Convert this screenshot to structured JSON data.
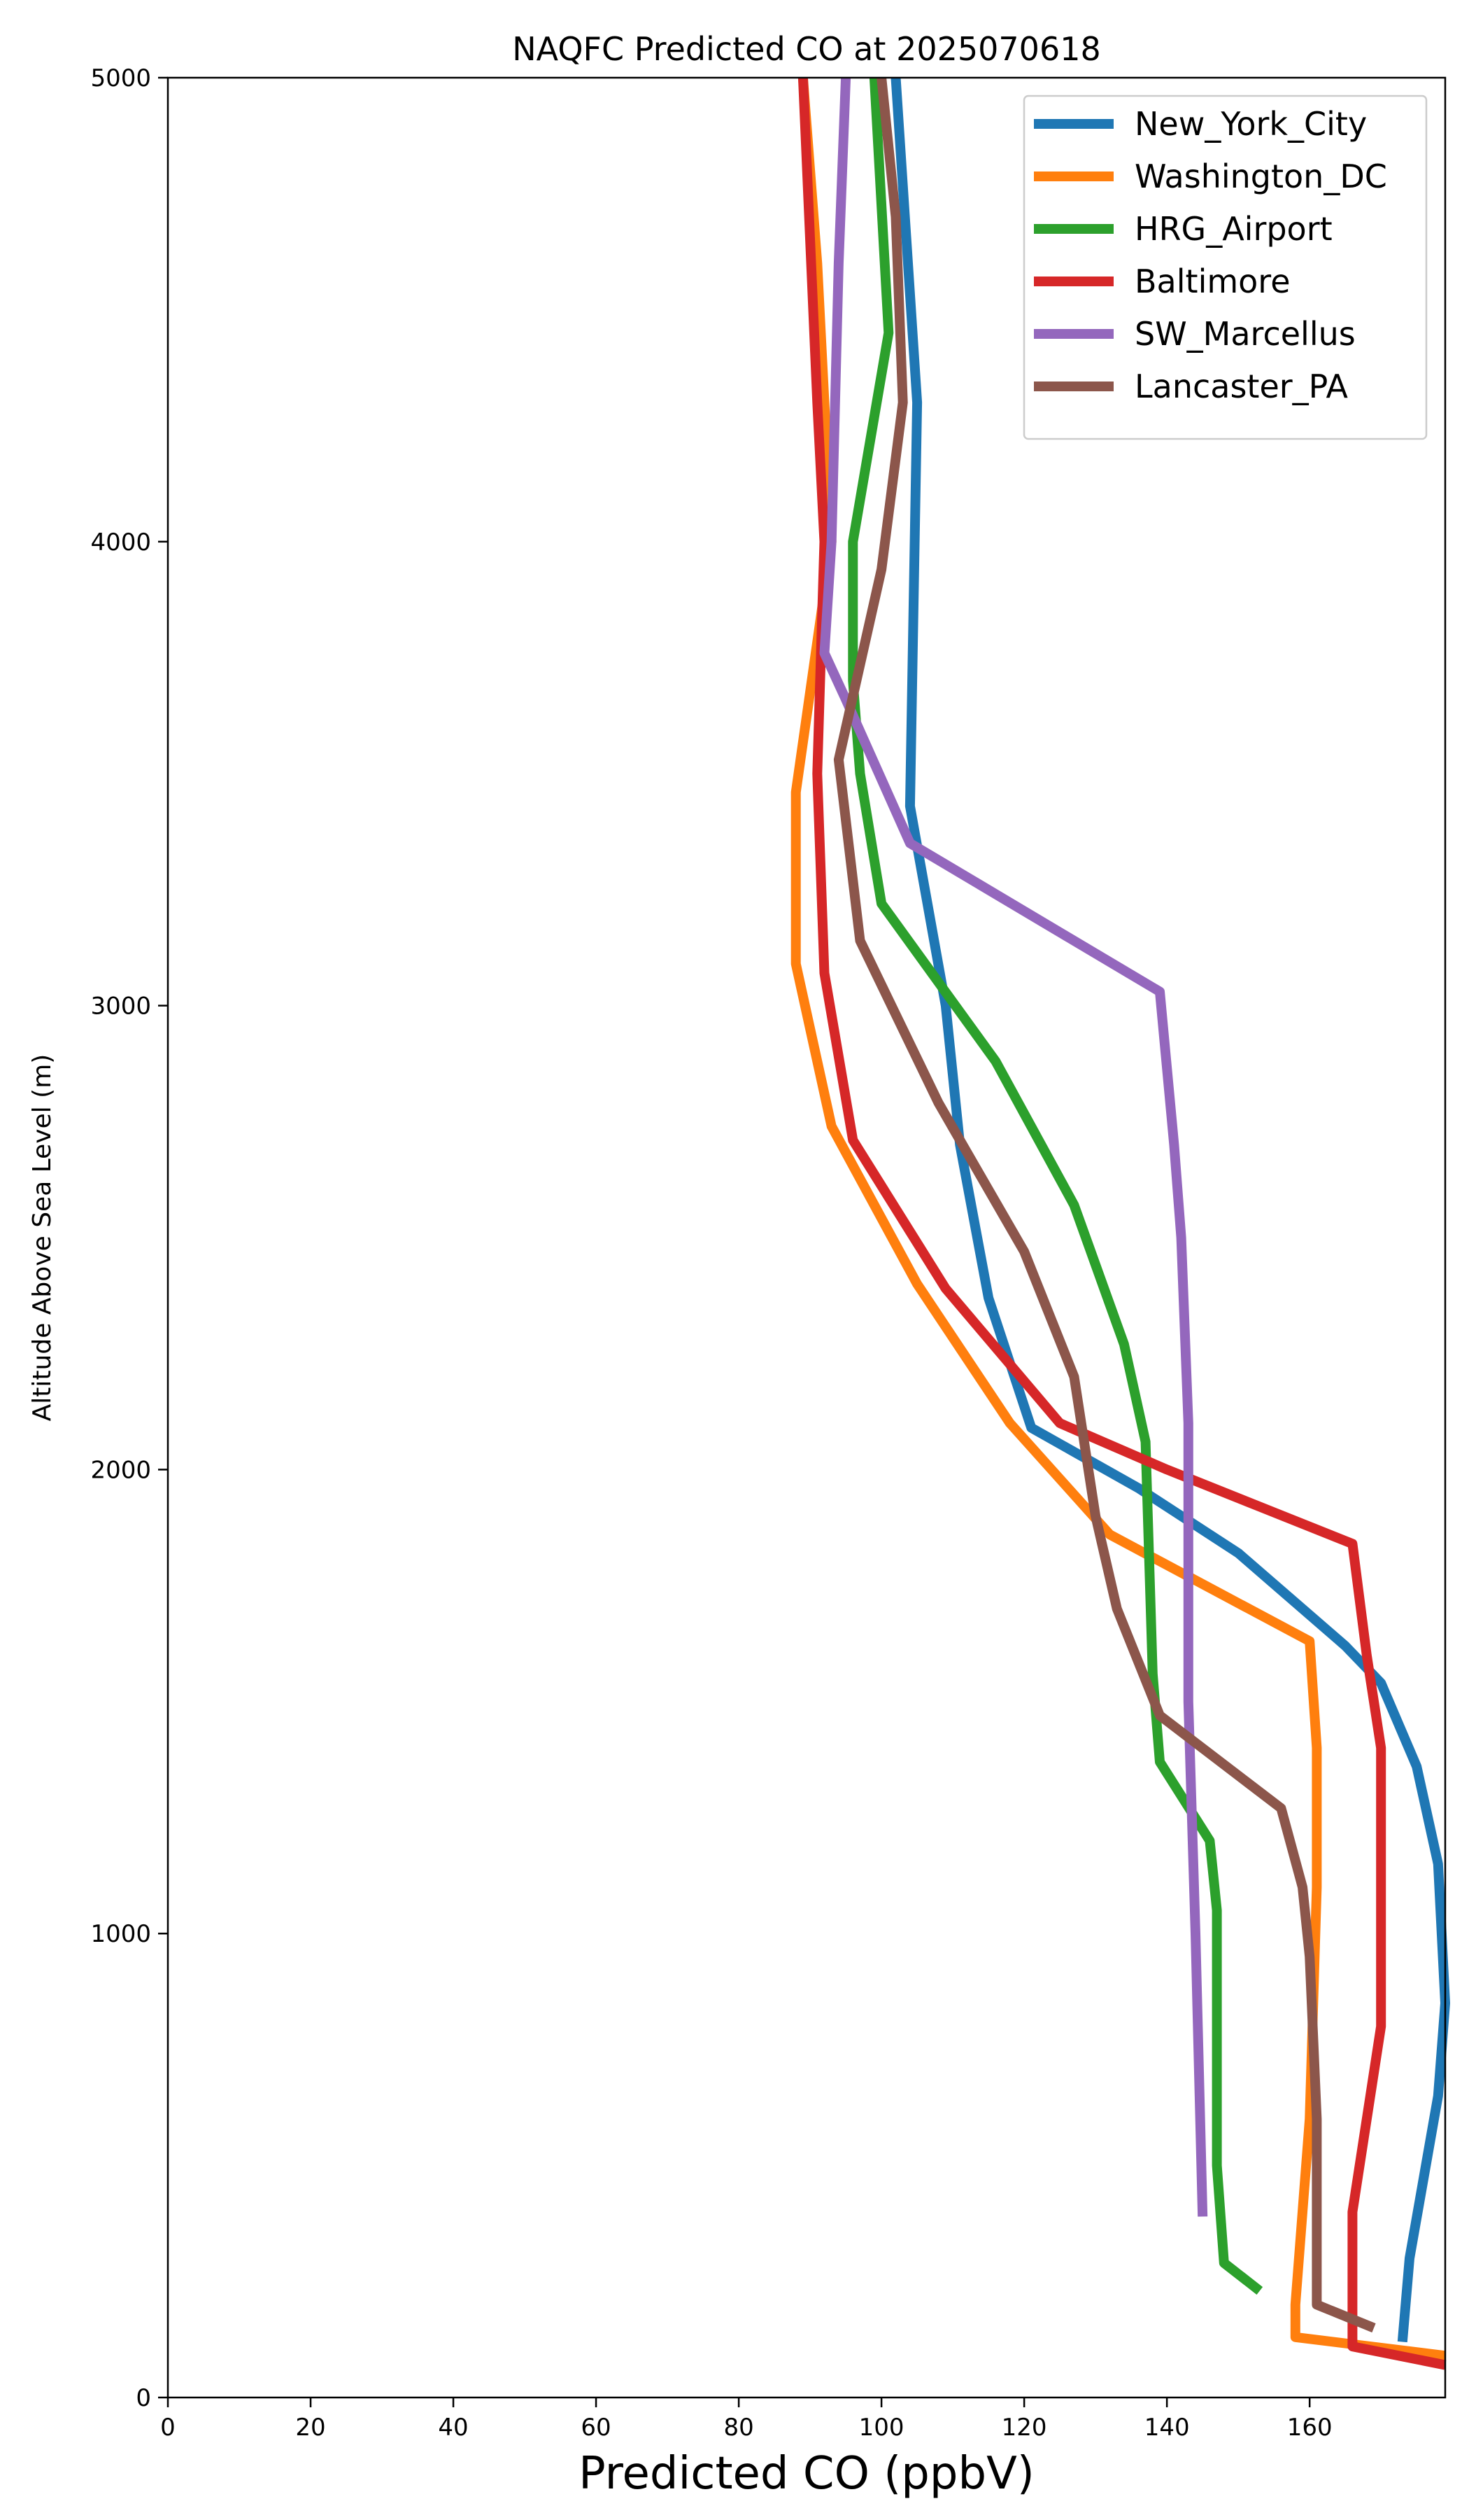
{
  "chart_data": {
    "type": "line",
    "title": "NAQFC Predicted CO at 2025070618",
    "xlabel": "Predicted CO (ppbV)",
    "ylabel": "Altitude Above Sea Level (m)",
    "xlim": [
      0,
      179
    ],
    "ylim": [
      0,
      5000
    ],
    "xticks": [
      0,
      20,
      40,
      60,
      80,
      100,
      120,
      140,
      160
    ],
    "yticks": [
      0,
      1000,
      2000,
      3000,
      4000,
      5000
    ],
    "grid": false,
    "legend": "top-right",
    "series": [
      {
        "name": "New_York_City",
        "color": "#1f77b4",
        "points": [
          [
            173,
            120
          ],
          [
            174,
            300
          ],
          [
            178,
            650
          ],
          [
            179,
            850
          ],
          [
            178,
            1150
          ],
          [
            175,
            1360
          ],
          [
            170,
            1540
          ],
          [
            165,
            1620
          ],
          [
            150,
            1820
          ],
          [
            136,
            1960
          ],
          [
            121,
            2090
          ],
          [
            115,
            2370
          ],
          [
            111,
            2700
          ],
          [
            109,
            3000
          ],
          [
            104,
            3430
          ],
          [
            105,
            4300
          ],
          [
            102,
            5000
          ]
        ]
      },
      {
        "name": "Washington_DC",
        "color": "#ff7f0e",
        "points": [
          [
            179,
            90
          ],
          [
            158,
            130
          ],
          [
            158,
            200
          ],
          [
            160,
            600
          ],
          [
            161,
            1100
          ],
          [
            161,
            1400
          ],
          [
            160,
            1630
          ],
          [
            132,
            1860
          ],
          [
            118,
            2100
          ],
          [
            105,
            2400
          ],
          [
            93,
            2740
          ],
          [
            88,
            3090
          ],
          [
            88,
            3460
          ],
          [
            93,
            4000
          ],
          [
            91,
            4600
          ],
          [
            89,
            5000
          ]
        ]
      },
      {
        "name": "HRG_Airport",
        "color": "#2ca02c",
        "points": [
          [
            153,
            230
          ],
          [
            148,
            290
          ],
          [
            147,
            500
          ],
          [
            147,
            1050
          ],
          [
            146,
            1200
          ],
          [
            139,
            1370
          ],
          [
            138,
            1560
          ],
          [
            137,
            2060
          ],
          [
            134,
            2270
          ],
          [
            127,
            2570
          ],
          [
            116,
            2880
          ],
          [
            100,
            3220
          ],
          [
            97,
            3500
          ],
          [
            96,
            3700
          ],
          [
            96,
            4000
          ],
          [
            101,
            4450
          ],
          [
            99,
            5000
          ]
        ]
      },
      {
        "name": "Baltimore",
        "color": "#d62728",
        "points": [
          [
            179,
            70
          ],
          [
            166,
            110
          ],
          [
            166,
            400
          ],
          [
            170,
            800
          ],
          [
            170,
            1400
          ],
          [
            168,
            1600
          ],
          [
            166,
            1840
          ],
          [
            140,
            2000
          ],
          [
            125,
            2100
          ],
          [
            109,
            2390
          ],
          [
            96,
            2710
          ],
          [
            92,
            3070
          ],
          [
            91,
            3500
          ],
          [
            92,
            4000
          ],
          [
            91,
            4300
          ],
          [
            89,
            5000
          ]
        ]
      },
      {
        "name": "SW_Marcellus",
        "color": "#9467bd",
        "points": [
          [
            145,
            390
          ],
          [
            144,
            1000
          ],
          [
            143,
            1500
          ],
          [
            143,
            2100
          ],
          [
            142,
            2500
          ],
          [
            141,
            2700
          ],
          [
            139,
            3030
          ],
          [
            104,
            3350
          ],
          [
            95,
            3660
          ],
          [
            92,
            3760
          ],
          [
            93,
            4000
          ],
          [
            94,
            4600
          ],
          [
            95,
            5000
          ]
        ]
      },
      {
        "name": "Lancaster_PA",
        "color": "#8c564b",
        "points": [
          [
            169,
            150
          ],
          [
            161,
            200
          ],
          [
            161,
            600
          ],
          [
            160,
            950
          ],
          [
            159,
            1100
          ],
          [
            156,
            1270
          ],
          [
            139,
            1470
          ],
          [
            133,
            1700
          ],
          [
            130,
            1900
          ],
          [
            127,
            2200
          ],
          [
            120,
            2470
          ],
          [
            108,
            2790
          ],
          [
            97,
            3140
          ],
          [
            94,
            3530
          ],
          [
            100,
            3940
          ],
          [
            103,
            4300
          ],
          [
            102,
            4700
          ],
          [
            100,
            5000
          ]
        ]
      }
    ]
  }
}
